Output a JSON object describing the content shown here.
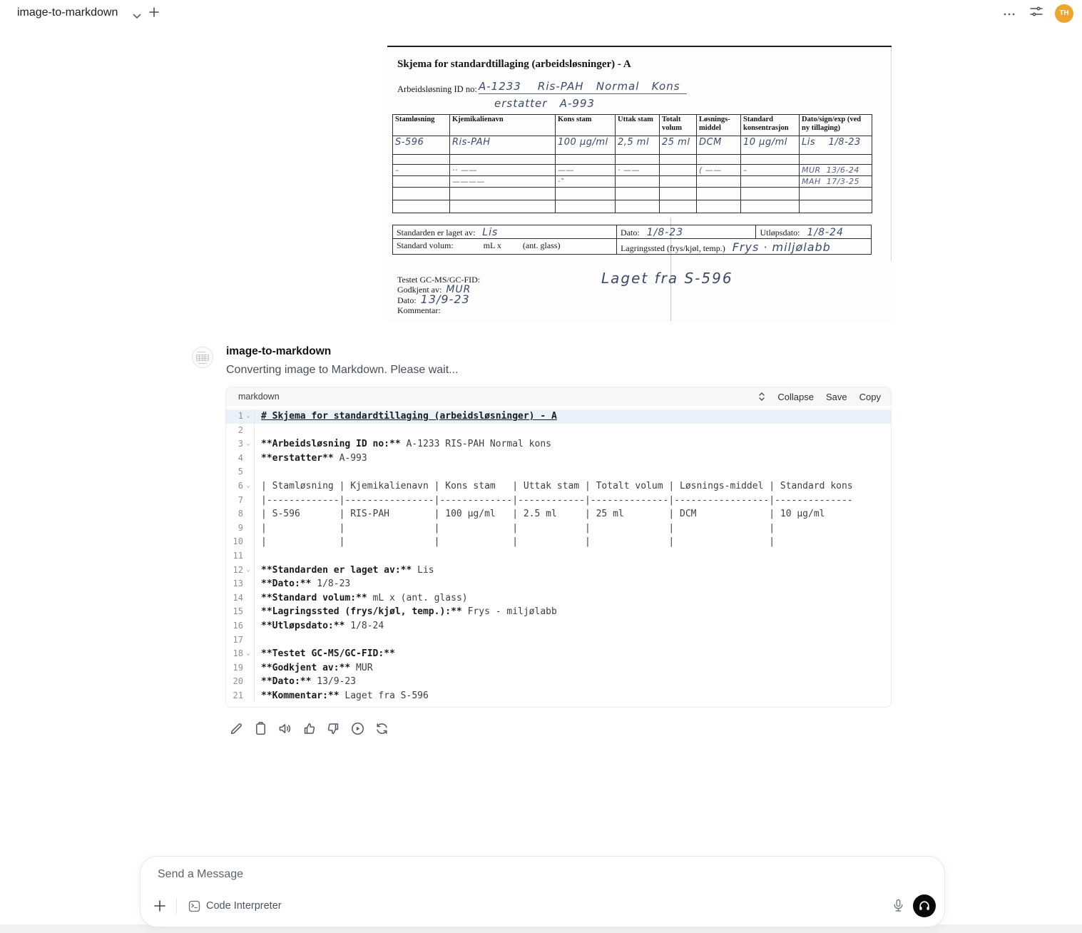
{
  "topbar": {
    "title": "image-to-markdown",
    "avatar_initials": "TH"
  },
  "scan": {
    "title": "Skjema for standardtillaging (arbeidsløsninger) - A",
    "id_label": "Arbeidsløsning ID no:",
    "id_value": "A-1233    Ris-PAH   Normal   Kons",
    "id_value2": "erstatter   A-993",
    "table": {
      "headers": [
        "Stamløsning",
        "Kjemikalienavn",
        "Kons stam",
        "Uttak stam",
        "Totalt volum",
        "Løsnings-middel",
        "Standard konsentrasjon",
        "Dato/sign/exp (ved ny tillaging)"
      ],
      "rows": [
        [
          "S-596",
          "Ris-PAH",
          "100 µg/ml",
          "2,5 ml",
          "25 ml",
          "DCM",
          "10 µg/ml",
          "Lis    1/8-23"
        ],
        [
          "",
          "",
          "",
          "",
          "",
          "",
          "",
          ""
        ],
        [
          "–",
          "·· ——",
          "——",
          "· ——",
          "",
          "( ——",
          "–",
          "MUR  13/6-24"
        ],
        [
          "",
          "————",
          "·‶",
          "",
          "",
          "",
          "",
          "MAH  17/3-25"
        ],
        [
          "",
          "",
          "",
          "",
          "",
          "",
          "",
          ""
        ],
        [
          "",
          "",
          "",
          "",
          "",
          "",
          "",
          ""
        ]
      ]
    },
    "made_by_label": "Standarden er laget av:",
    "made_by_value": "Lis",
    "date_label": "Dato:",
    "date_value": "1/8-23",
    "expiry_label": "Utløpsdato:",
    "expiry_value": "1/8-24",
    "volume_label": "Standard volum:",
    "volume_mid": "mL x",
    "volume_right": "(ant. glass)",
    "storage_label": "Lagringssted (frys/kjøl, temp.)",
    "storage_value": "Frys · miljølabb",
    "tested_label": "Testet GC-MS/GC-FID:",
    "approved_label": "Godkjent av:",
    "approved_value": "MUR",
    "footer_date_label": "Dato:",
    "footer_date_value": "13/9-23",
    "comment_label": "Kommentar:",
    "note": "Laget fra S-596"
  },
  "message": {
    "sender": "image-to-markdown",
    "status": "Converting image to Markdown. Please wait...",
    "code": {
      "language": "markdown",
      "collapse_label": "Collapse",
      "save_label": "Save",
      "copy_label": "Copy",
      "lines": [
        {
          "n": 1,
          "fold": true,
          "hl": true,
          "segs": [
            {
              "t": "# Skjema for standardtillaging (arbeidsløsninger) - A",
              "b": true,
              "u": true
            }
          ]
        },
        {
          "n": 2,
          "segs": []
        },
        {
          "n": 3,
          "fold": true,
          "segs": [
            {
              "t": "**Arbeidsløsning ID no:**",
              "b": true
            },
            {
              "t": " A-1233 RIS-PAH Normal kons"
            }
          ]
        },
        {
          "n": 4,
          "segs": [
            {
              "t": "**erstatter**",
              "b": true
            },
            {
              "t": " A-993"
            }
          ]
        },
        {
          "n": 5,
          "segs": []
        },
        {
          "n": 6,
          "fold": true,
          "segs": [
            {
              "t": "| Stamløsning | Kjemikalienavn | Kons stam   | Uttak stam | Totalt volum | Løsnings-middel | Standard kons"
            }
          ]
        },
        {
          "n": 7,
          "segs": [
            {
              "t": "|-------------|----------------|-------------|------------|--------------|-----------------|--------------"
            }
          ]
        },
        {
          "n": 8,
          "segs": [
            {
              "t": "| S-596       | RIS-PAH        | 100 µg/ml   | 2.5 ml     | 25 ml        | DCM             | 10 µg/ml"
            }
          ]
        },
        {
          "n": 9,
          "segs": [
            {
              "t": "|             |                |             |            |              |                 |"
            }
          ]
        },
        {
          "n": 10,
          "segs": [
            {
              "t": "|             |                |             |            |              |                 |"
            }
          ]
        },
        {
          "n": 11,
          "segs": []
        },
        {
          "n": 12,
          "fold": true,
          "segs": [
            {
              "t": "**Standarden er laget av:**",
              "b": true
            },
            {
              "t": " Lis"
            }
          ]
        },
        {
          "n": 13,
          "segs": [
            {
              "t": "**Dato:**",
              "b": true
            },
            {
              "t": " 1/8-23"
            }
          ]
        },
        {
          "n": 14,
          "segs": [
            {
              "t": "**Standard volum:**",
              "b": true
            },
            {
              "t": " mL x (ant. glass)"
            }
          ]
        },
        {
          "n": 15,
          "segs": [
            {
              "t": "**Lagringssted (frys/kjøl, temp.):**",
              "b": true
            },
            {
              "t": " Frys - miljølabb"
            }
          ]
        },
        {
          "n": 16,
          "segs": [
            {
              "t": "**Utløpsdato:**",
              "b": true
            },
            {
              "t": " 1/8-24"
            }
          ]
        },
        {
          "n": 17,
          "segs": []
        },
        {
          "n": 18,
          "fold": true,
          "segs": [
            {
              "t": "**Testet GC-MS/GC-FID:**",
              "b": true
            }
          ]
        },
        {
          "n": 19,
          "segs": [
            {
              "t": "**Godkjent av:**",
              "b": true
            },
            {
              "t": " MUR"
            }
          ]
        },
        {
          "n": 20,
          "segs": [
            {
              "t": "**Dato:**",
              "b": true
            },
            {
              "t": " 13/9-23"
            }
          ]
        },
        {
          "n": 21,
          "segs": [
            {
              "t": "**Kommentar:**",
              "b": true
            },
            {
              "t": " Laget fra S-596"
            }
          ]
        }
      ]
    }
  },
  "actions": [
    "edit",
    "copy",
    "read-aloud",
    "good-response",
    "bad-response",
    "continue-response",
    "regenerate"
  ],
  "composer": {
    "placeholder": "Send a Message",
    "code_interpreter_label": "Code Interpreter"
  },
  "colors": {
    "avatar_orange": "#efa42d",
    "code_line_highlight": "#e9f2fb",
    "call_button_black": "#0a0a0a",
    "handwriting_ink": "#3b4a6b"
  }
}
